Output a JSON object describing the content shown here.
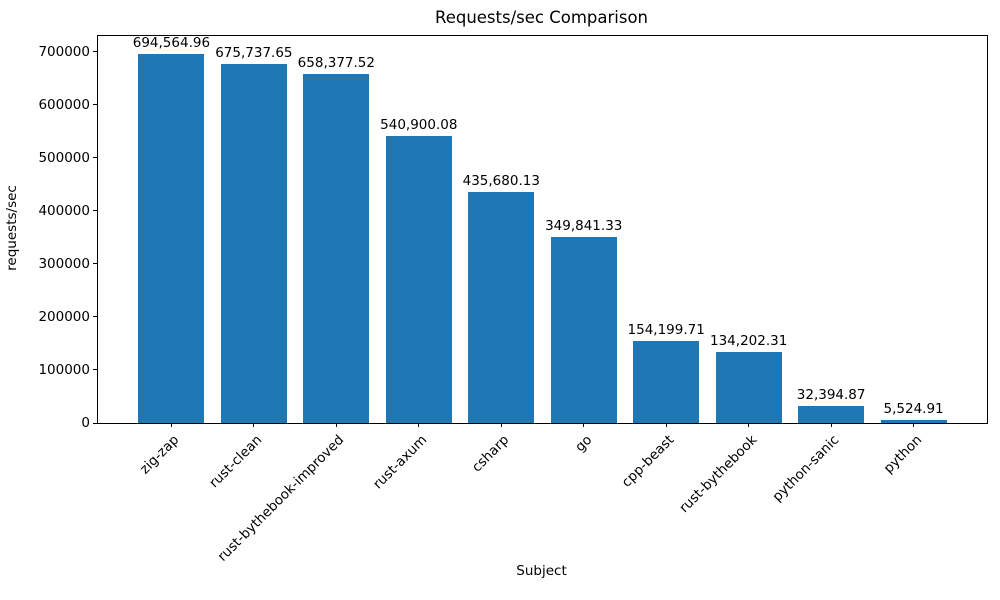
{
  "chart_data": {
    "type": "bar",
    "title": "Requests/sec Comparison",
    "xlabel": "Subject",
    "ylabel": "requests/sec",
    "categories": [
      "zig-zap",
      "rust-clean",
      "rust-bythebook-improved",
      "rust-axum",
      "csharp",
      "go",
      "cpp-beast",
      "rust-bythebook",
      "python-sanic",
      "python"
    ],
    "values": [
      694564.96,
      675737.65,
      658377.52,
      540900.08,
      435680.13,
      349841.33,
      154199.71,
      134202.31,
      32394.87,
      5524.91
    ],
    "value_labels": [
      "694,564.96",
      "675,737.65",
      "658,377.52",
      "540,900.08",
      "435,680.13",
      "349,841.33",
      "154,199.71",
      "134,202.31",
      "32,394.87",
      "5,524.91"
    ],
    "bar_color": "#1f77b4",
    "ylim": [
      0,
      729293
    ],
    "yticks": [
      0,
      100000,
      200000,
      300000,
      400000,
      500000,
      600000,
      700000
    ],
    "grid": false,
    "legend": null,
    "x_tick_rotation_deg": 45
  }
}
